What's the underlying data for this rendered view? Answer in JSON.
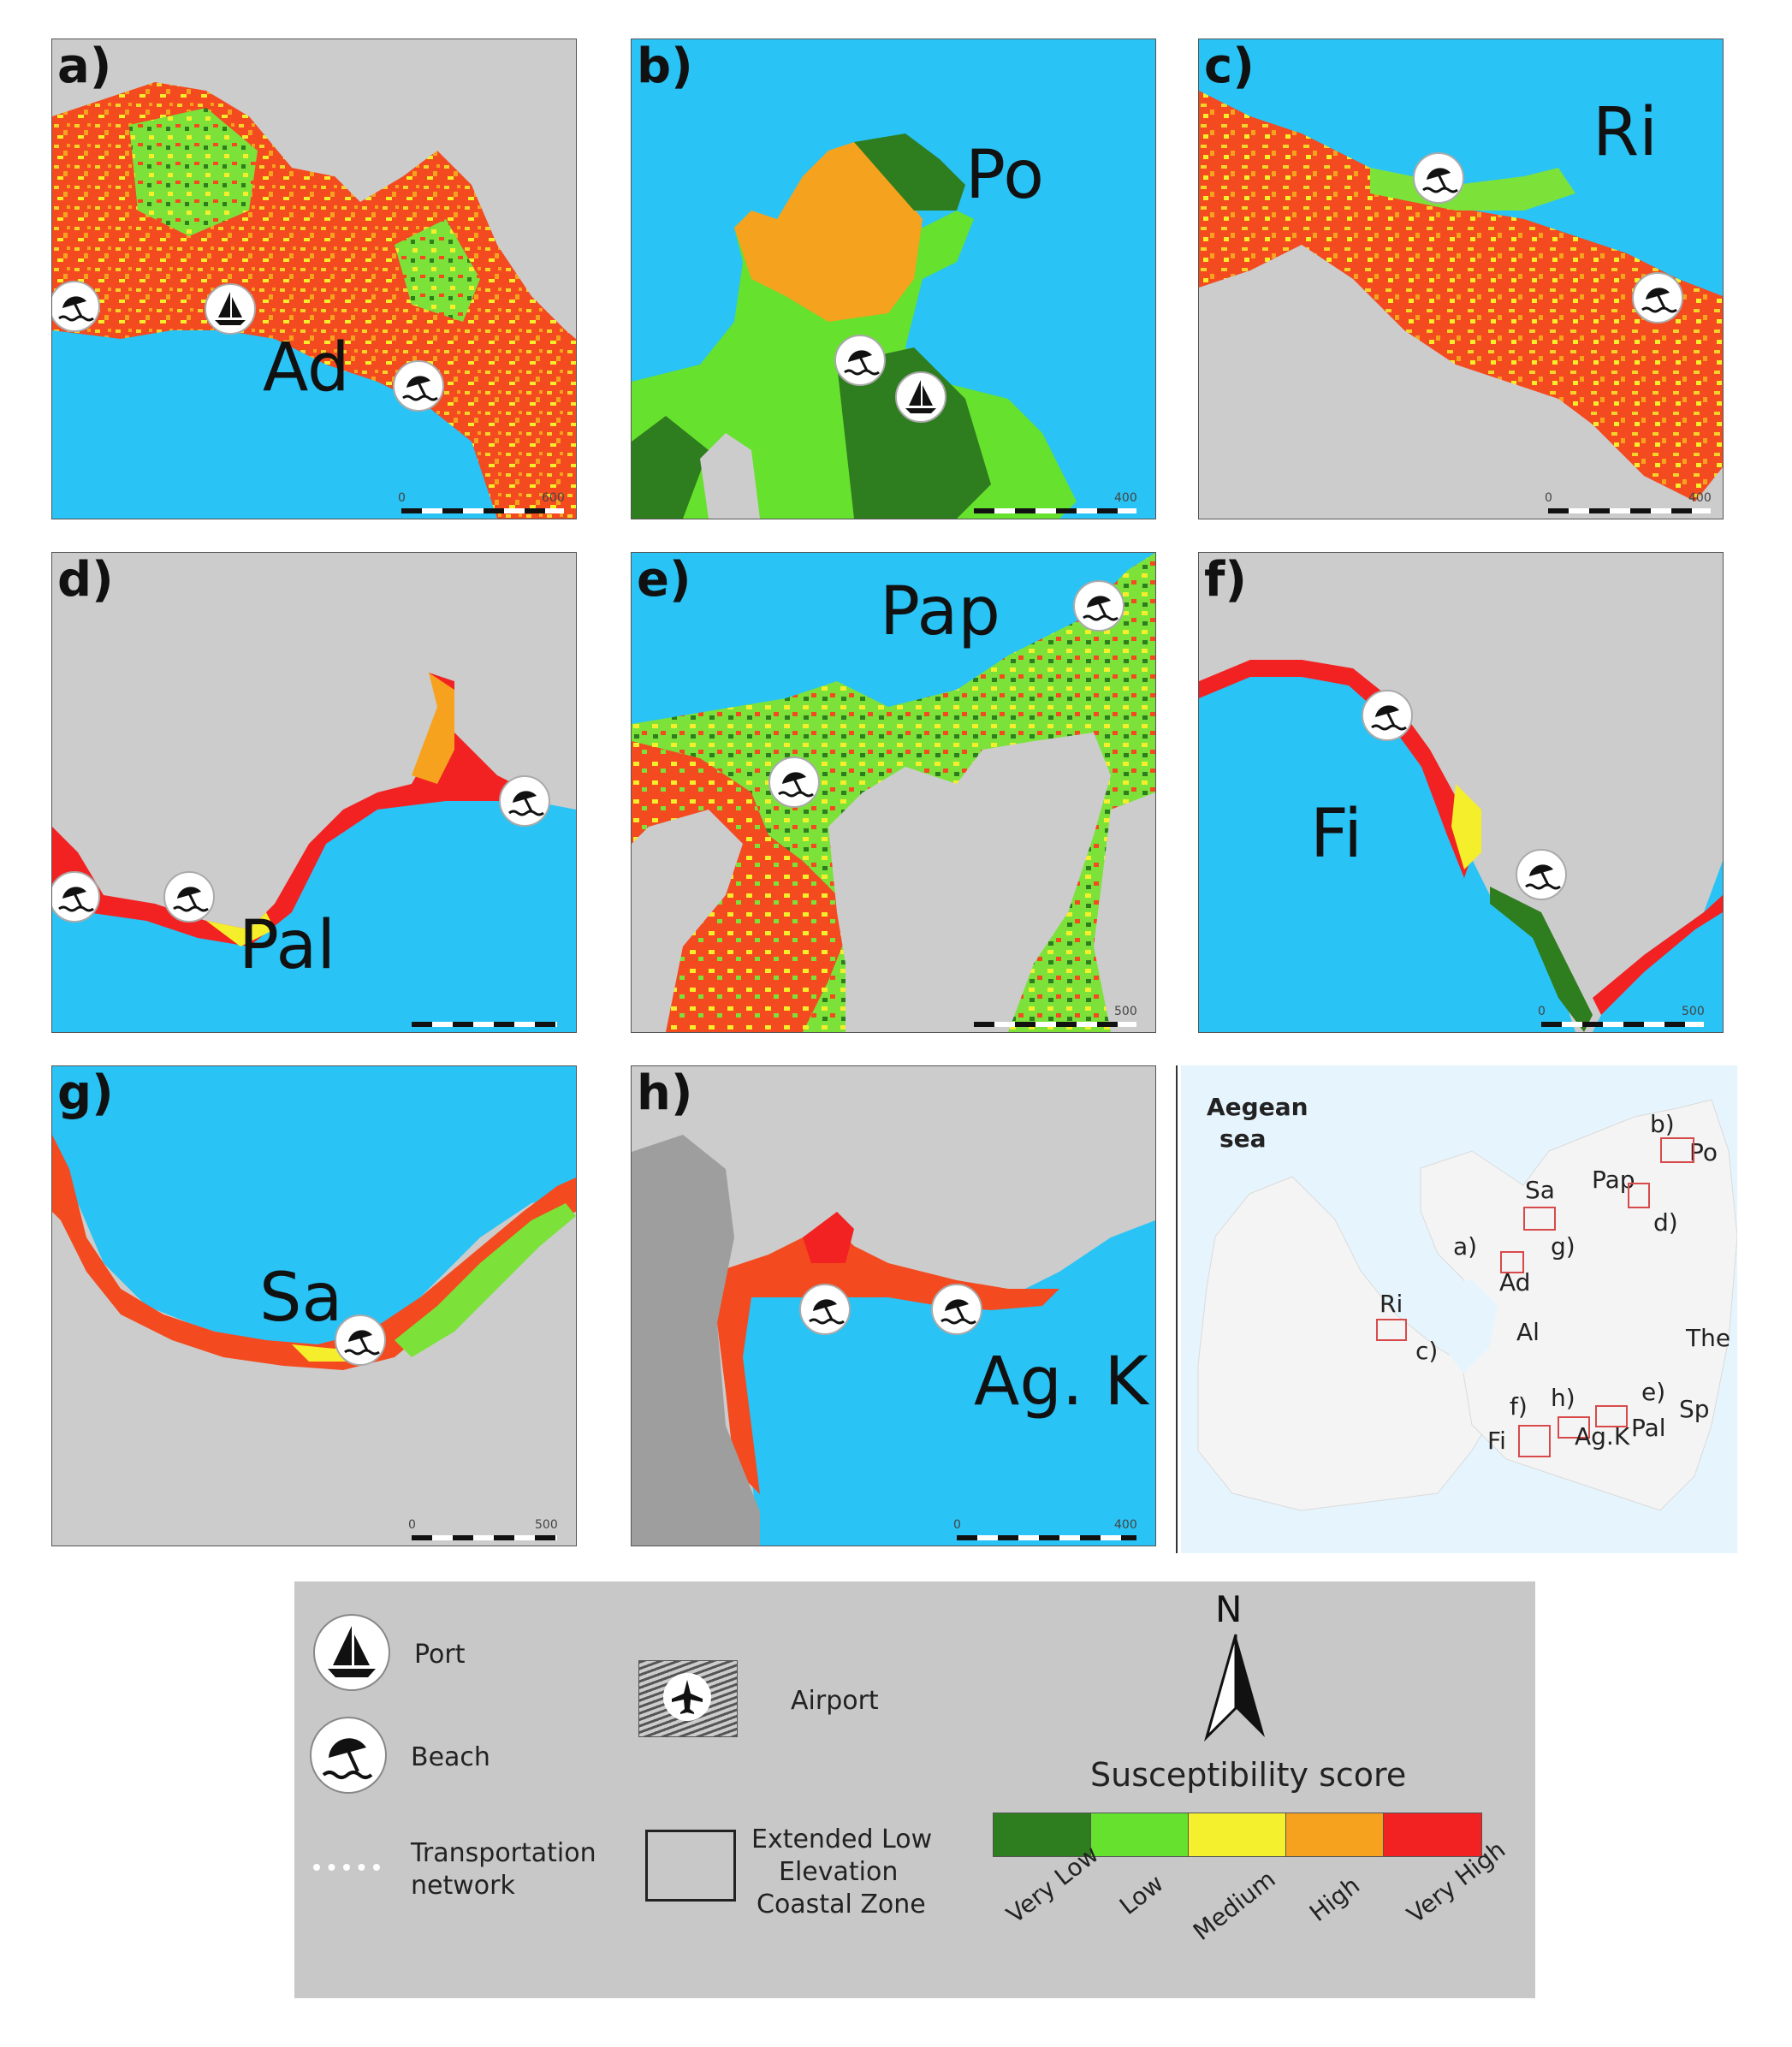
{
  "panels": [
    {
      "label": "a)",
      "name": "Ad",
      "scale_start": "0",
      "scale_end": "600"
    },
    {
      "label": "b)",
      "name": "Po",
      "scale_start": "",
      "scale_end": "400"
    },
    {
      "label": "c)",
      "name": "Ri",
      "scale_start": "0",
      "scale_end": "400"
    },
    {
      "label": "d)",
      "name": "Pal",
      "scale_start": "",
      "scale_end": ""
    },
    {
      "label": "e)",
      "name": "Pap",
      "scale_start": "",
      "scale_end": "500"
    },
    {
      "label": "f)",
      "name": "Fi",
      "scale_start": "0",
      "scale_end": "500"
    },
    {
      "label": "g)",
      "name": "Sa",
      "scale_start": "0",
      "scale_end": "500"
    },
    {
      "label": "h)",
      "name": "Ag. K",
      "scale_start": "0",
      "scale_end": "400"
    }
  ],
  "inset": {
    "sea_label_1": "Aegean",
    "sea_label_2": "sea",
    "labels": {
      "b": "b)",
      "po": "Po",
      "pap": "Pap",
      "sa": "Sa",
      "d": "d)",
      "a": "a)",
      "g": "g)",
      "ad": "Ad",
      "ri": "Ri",
      "al": "Al",
      "the": "The",
      "c": "c)",
      "e": "e)",
      "f": "f)",
      "h": "h)",
      "sp": "Sp",
      "fi": "Fi",
      "agk": "Ag.K",
      "pal": "Pal"
    }
  },
  "legend": {
    "port": "Port",
    "beach": "Beach",
    "transport_1": "Transportation",
    "transport_2": "network",
    "airport": "Airport",
    "elcz_1": "Extended Low",
    "elcz_2": "Elevation",
    "elcz_3": "Coastal Zone",
    "north": "N",
    "susceptibility_title": "Susceptibility score",
    "classes": [
      {
        "label": "Very Low",
        "color": "#2e7d1e"
      },
      {
        "label": "Low",
        "color": "#66e12e"
      },
      {
        "label": "Medium",
        "color": "#f5f02e"
      },
      {
        "label": "High",
        "color": "#f7a21e"
      },
      {
        "label": "Very High",
        "color": "#f22222"
      }
    ]
  },
  "colors": {
    "sea": "#29c3f5",
    "land": "#c9c9c9"
  }
}
